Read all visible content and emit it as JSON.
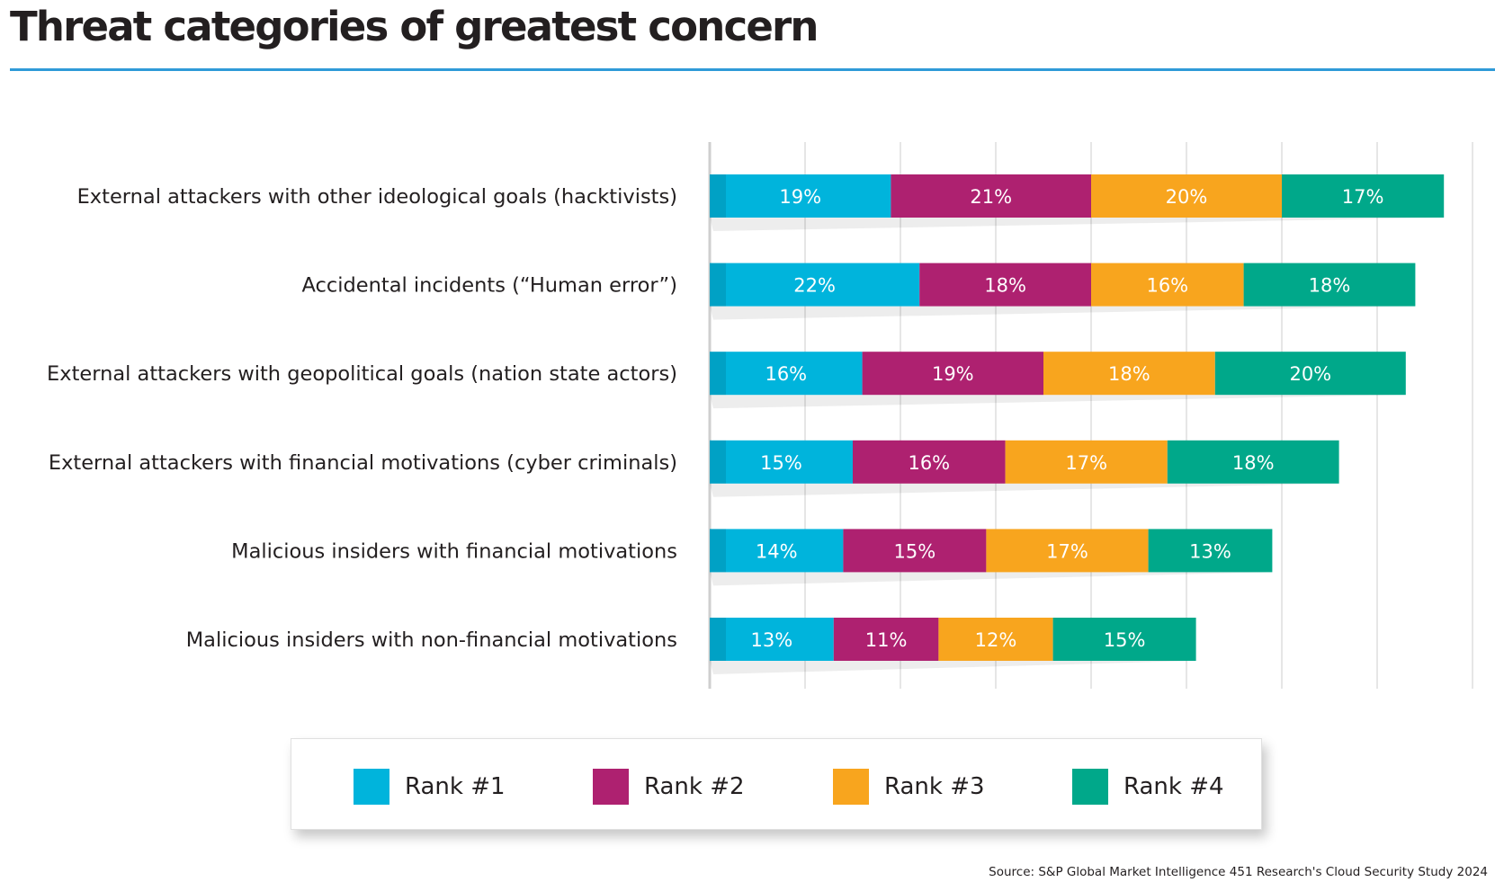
{
  "chart_data": {
    "type": "bar",
    "orientation": "horizontal",
    "stacked": true,
    "title": "Threat categories of greatest concern",
    "categories": [
      "External attackers with other ideological goals (hacktivists)",
      "Accidental incidents (“Human error”)",
      "External attackers with geopolitical goals (nation state actors)",
      "External attackers with financial motivations (cyber criminals)",
      "Malicious insiders with financial motivations",
      "Malicious insiders with non-financial motivations"
    ],
    "series": [
      {
        "name": "Rank #1",
        "color": "#00b4dc",
        "values": [
          19,
          22,
          16,
          15,
          14,
          13
        ],
        "labels": [
          "19%",
          "22%",
          "16%",
          "15%",
          "14%",
          "13%"
        ]
      },
      {
        "name": "Rank #2",
        "color": "#ae2170",
        "values": [
          21,
          18,
          19,
          16,
          15,
          11
        ],
        "labels": [
          "21%",
          "18%",
          "19%",
          "16%",
          "15%",
          "11%"
        ]
      },
      {
        "name": "Rank #3",
        "color": "#f8a51e",
        "values": [
          20,
          16,
          18,
          17,
          17,
          12
        ],
        "labels": [
          "20%",
          "16%",
          "18%",
          "17%",
          "17%",
          "12%"
        ]
      },
      {
        "name": "Rank #4",
        "color": "#00a88a",
        "values": [
          17,
          18,
          20,
          18,
          13,
          15
        ],
        "labels": [
          "17%",
          "18%",
          "20%",
          "18%",
          "13%",
          "15%"
        ]
      }
    ],
    "xlim": [
      0,
      80
    ],
    "grid": true,
    "legend_position": "bottom",
    "source": "Source: S&P Global Market Intelligence 451 Research's Cloud Security Study 2024"
  }
}
